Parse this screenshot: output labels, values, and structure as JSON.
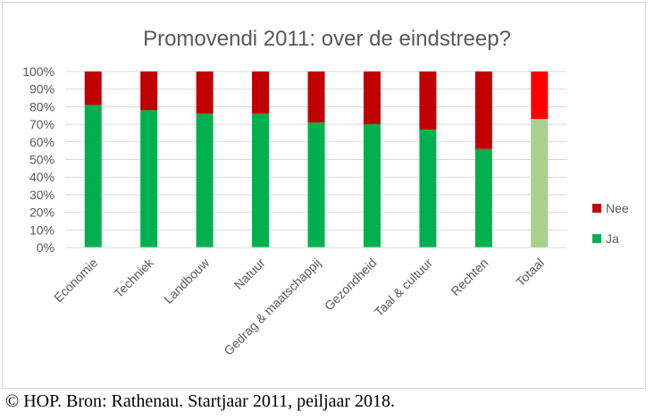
{
  "chart_data": {
    "type": "bar",
    "stacked": true,
    "title": "Promovendi 2011: over de eindstreep?",
    "xlabel": "",
    "ylabel": "",
    "ylim": [
      0,
      100
    ],
    "y_ticks": [
      "0%",
      "10%",
      "20%",
      "30%",
      "40%",
      "50%",
      "60%",
      "70%",
      "80%",
      "90%",
      "100%"
    ],
    "categories": [
      "Economie",
      "Techniek",
      "Landbouw",
      "Natuur",
      "Gedrag & maatschappij",
      "Gezondheid",
      "Taal & cultuur",
      "Rechten",
      "Totaal"
    ],
    "series": [
      {
        "name": "Ja",
        "values": [
          81,
          78,
          76,
          76,
          71,
          70,
          67,
          56,
          73
        ],
        "color": "#00b050",
        "highlight_color": "#a9d18e"
      },
      {
        "name": "Nee",
        "values": [
          19,
          22,
          24,
          24,
          29,
          30,
          33,
          44,
          27
        ],
        "color": "#c00000",
        "highlight_color": "#ff0000"
      }
    ],
    "highlight_category": "Totaal",
    "legend": {
      "position": "right",
      "order": [
        "Nee",
        "Ja"
      ]
    },
    "grid": true
  },
  "caption": "© HOP. Bron: Rathenau. Startjaar 2011, peiljaar 2018."
}
